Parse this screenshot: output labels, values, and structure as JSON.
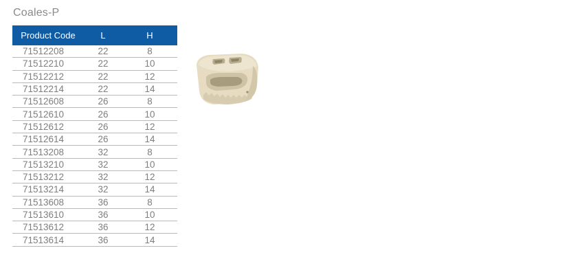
{
  "title": "Coales-P",
  "table": {
    "headers": [
      "Product Code",
      "L",
      "H"
    ],
    "rows": [
      [
        "71512208",
        "22",
        "8"
      ],
      [
        "71512210",
        "22",
        "10"
      ],
      [
        "71512212",
        "22",
        "12"
      ],
      [
        "71512214",
        "22",
        "14"
      ],
      [
        "71512608",
        "26",
        "8"
      ],
      [
        "71512610",
        "26",
        "10"
      ],
      [
        "71512612",
        "26",
        "12"
      ],
      [
        "71512614",
        "26",
        "14"
      ],
      [
        "71513208",
        "32",
        "8"
      ],
      [
        "71513210",
        "32",
        "10"
      ],
      [
        "71513212",
        "32",
        "12"
      ],
      [
        "71513214",
        "32",
        "14"
      ],
      [
        "71513608",
        "36",
        "8"
      ],
      [
        "71513610",
        "36",
        "10"
      ],
      [
        "71513612",
        "36",
        "12"
      ],
      [
        "71513614",
        "36",
        "14"
      ]
    ]
  },
  "colors": {
    "header_bg": "#0f5ca5",
    "implant": "#e6dcc3"
  }
}
